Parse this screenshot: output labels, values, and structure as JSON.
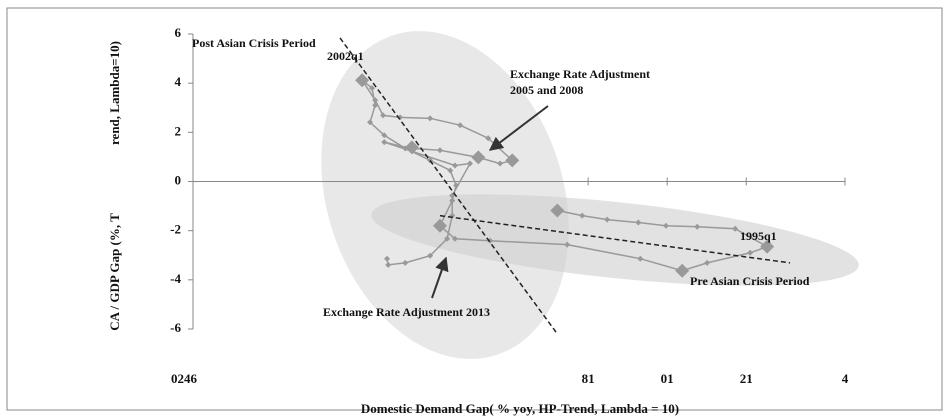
{
  "chart_data": {
    "type": "scatter",
    "xlabel": "Domestic Demand Gap( % yoy, HP-Trend, Lambda = 10)",
    "ylabel": [
      "rend, Lambda=10)",
      "CA / GDP Gap (%, T"
    ],
    "xlim": [
      0,
      16.5
    ],
    "ylim": [
      -6,
      6
    ],
    "xticks": [
      {
        "value": 0,
        "label": "0246"
      },
      {
        "value": 10,
        "label": "81"
      },
      {
        "value": 12,
        "label": "01"
      },
      {
        "value": 14,
        "label": "21"
      },
      {
        "value": 16.5,
        "label": "4"
      }
    ],
    "yticks": [
      -6,
      -4,
      -2,
      0,
      2,
      4,
      6
    ],
    "series": [
      {
        "color": "#999999",
        "marker": "small",
        "x": [
          9.22,
          9.85,
          10.48,
          11.27,
          11.97,
          12.76,
          13.72,
          14.53,
          14.1,
          13.01,
          12.38,
          11.32,
          9.47,
          7.52,
          6.63,
          6.25,
          6.56,
          6.66,
          6.51,
          6.0,
          5.37,
          4.84,
          4.48,
          4.61,
          4.53,
          4.28,
          4.61,
          4.81,
          5.24,
          6.0,
          6.76,
          7.47,
          8.08,
          7.77,
          7.22,
          6.25,
          5.49,
          4.84,
          6.63,
          7.01,
          6.56,
          6.56,
          6.43,
          6.0,
          5.37,
          4.94,
          4.91
        ],
        "y": [
          -1.18,
          -1.39,
          -1.55,
          -1.67,
          -1.8,
          -1.84,
          -1.92,
          -2.65,
          -2.9,
          -3.31,
          -3.63,
          -3.14,
          -2.57,
          -2.41,
          -2.33,
          -1.8,
          -0.78,
          -0.16,
          0.45,
          0.86,
          1.35,
          1.88,
          2.41,
          3.1,
          3.8,
          4.12,
          3.31,
          2.69,
          2.61,
          2.57,
          2.29,
          1.76,
          0.86,
          0.73,
          0.98,
          1.27,
          1.35,
          1.6,
          0.65,
          0.73,
          -0.57,
          -1.39,
          -2.33,
          -3.02,
          -3.31,
          -3.39,
          -3.14
        ]
      },
      {
        "color": "#999999",
        "marker": "large",
        "x": [
          4.28,
          7.22,
          8.08,
          5.54,
          6.25,
          9.22,
          12.38,
          14.53
        ],
        "y": [
          4.12,
          0.98,
          0.86,
          1.39,
          -1.8,
          -1.18,
          -3.63,
          -2.65
        ]
      }
    ],
    "trend_lines": [
      {
        "x": [
          3.72,
          9.22
        ],
        "y": [
          5.84,
          -6.2
        ]
      },
      {
        "x": [
          6.25,
          15.11
        ],
        "y": [
          -1.39,
          -3.31
        ]
      }
    ],
    "annotations": [
      "Post Asian Crisis Period",
      "2002q1",
      "Exchange Rate Adjustment",
      "2005 and 2008",
      "1995q1",
      "Pre Asian Crisis Period",
      "Exchange Rate Adjustment 2013"
    ]
  }
}
